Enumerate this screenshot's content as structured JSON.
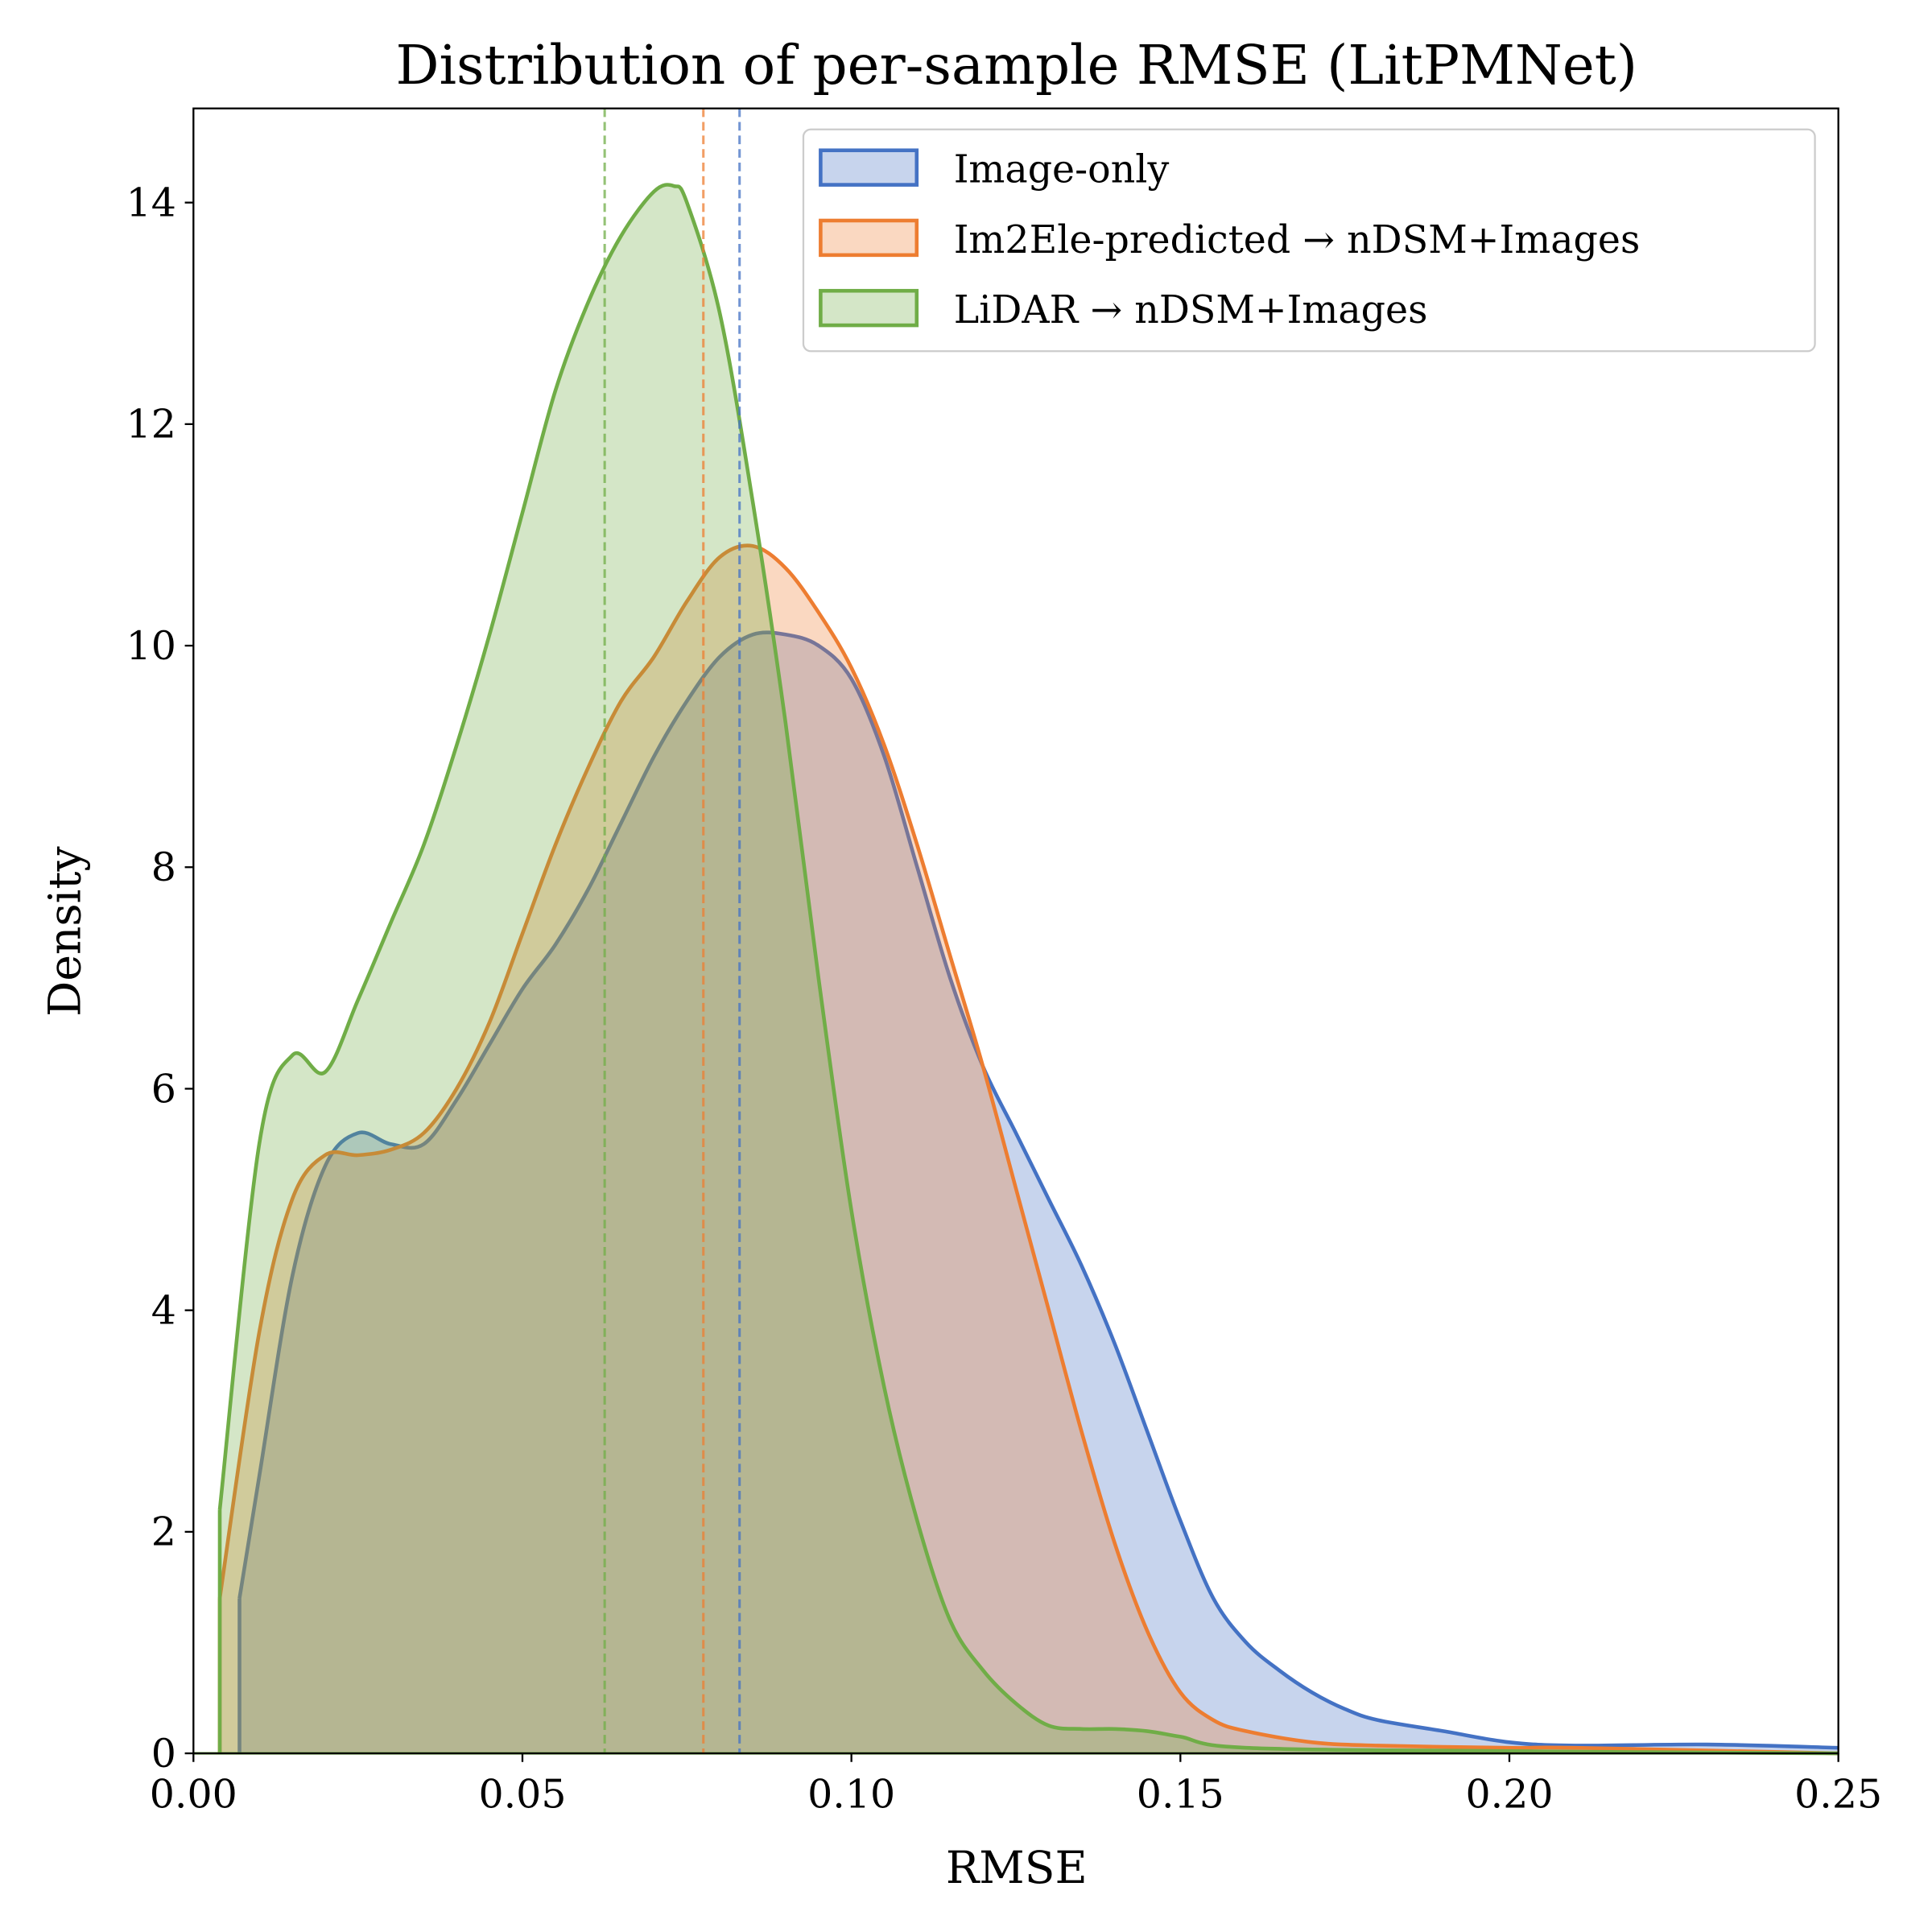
{
  "chart_data": {
    "type": "area",
    "title": "Distribution of per-sample RMSE (LitPMNet)",
    "xlabel": "RMSE",
    "ylabel": "Density",
    "xlim": [
      0,
      0.25
    ],
    "ylim": [
      0,
      14.85
    ],
    "xticks": [
      0,
      0.05,
      0.1,
      0.15,
      0.2,
      0.25
    ],
    "xtick_labels": [
      "0.00",
      "0.05",
      "0.10",
      "0.15",
      "0.20",
      "0.25"
    ],
    "yticks": [
      0,
      2,
      4,
      6,
      8,
      10,
      12,
      14
    ],
    "ytick_labels": [
      "0",
      "2",
      "4",
      "6",
      "8",
      "10",
      "12",
      "14"
    ],
    "grid": false,
    "legend_position": "top-right",
    "series": [
      {
        "name": "Image-only",
        "color": "#4472c4",
        "mean": 0.083,
        "x": [
          0.007,
          0.01,
          0.015,
          0.02,
          0.025,
          0.03,
          0.035,
          0.04,
          0.045,
          0.05,
          0.055,
          0.06,
          0.065,
          0.07,
          0.075,
          0.08,
          0.085,
          0.09,
          0.095,
          0.1,
          0.105,
          0.11,
          0.115,
          0.12,
          0.125,
          0.13,
          0.135,
          0.14,
          0.145,
          0.15,
          0.155,
          0.16,
          0.165,
          0.17,
          0.175,
          0.18,
          0.19,
          0.2,
          0.21,
          0.23,
          0.25
        ],
        "y": [
          1.4,
          2.5,
          4.3,
          5.3,
          5.6,
          5.5,
          5.5,
          5.9,
          6.4,
          6.9,
          7.3,
          7.8,
          8.4,
          9.0,
          9.5,
          9.9,
          10.1,
          10.1,
          10.0,
          9.7,
          9.0,
          8.0,
          7.0,
          6.2,
          5.6,
          5.0,
          4.4,
          3.7,
          2.9,
          2.1,
          1.4,
          1.0,
          0.75,
          0.55,
          0.4,
          0.3,
          0.2,
          0.1,
          0.07,
          0.08,
          0.05
        ]
      },
      {
        "name": "Im2Ele-predicted → nDSM+Images",
        "color": "#ed7d31",
        "mean": 0.0775,
        "x": [
          0.004,
          0.01,
          0.015,
          0.02,
          0.025,
          0.03,
          0.035,
          0.04,
          0.045,
          0.05,
          0.055,
          0.06,
          0.065,
          0.07,
          0.075,
          0.08,
          0.085,
          0.09,
          0.095,
          0.1,
          0.105,
          0.11,
          0.115,
          0.12,
          0.125,
          0.13,
          0.135,
          0.14,
          0.145,
          0.15,
          0.155,
          0.16,
          0.17,
          0.18,
          0.2,
          0.21,
          0.25
        ],
        "y": [
          1.4,
          3.8,
          5.0,
          5.4,
          5.4,
          5.45,
          5.6,
          6.0,
          6.6,
          7.4,
          8.2,
          8.9,
          9.5,
          9.9,
          10.4,
          10.8,
          10.9,
          10.7,
          10.3,
          9.8,
          9.1,
          8.2,
          7.2,
          6.2,
          5.1,
          4.0,
          2.9,
          1.9,
          1.1,
          0.55,
          0.3,
          0.2,
          0.1,
          0.07,
          0.05,
          0.05,
          0.0
        ]
      },
      {
        "name": "LiDAR → nDSM+Images",
        "color": "#70ad47",
        "mean": 0.0625,
        "x": [
          0.004,
          0.01,
          0.015,
          0.02,
          0.025,
          0.03,
          0.035,
          0.04,
          0.045,
          0.05,
          0.055,
          0.06,
          0.065,
          0.07,
          0.073,
          0.075,
          0.08,
          0.085,
          0.09,
          0.095,
          0.1,
          0.105,
          0.11,
          0.115,
          0.12,
          0.125,
          0.13,
          0.135,
          0.14,
          0.145,
          0.15,
          0.16,
          0.2,
          0.25
        ],
        "y": [
          2.2,
          5.5,
          6.3,
          6.15,
          6.8,
          7.5,
          8.2,
          9.1,
          10.1,
          11.2,
          12.3,
          13.1,
          13.7,
          14.1,
          14.15,
          14.0,
          13.0,
          11.3,
          9.3,
          7.0,
          4.9,
          3.3,
          2.1,
          1.2,
          0.75,
          0.45,
          0.25,
          0.22,
          0.22,
          0.2,
          0.15,
          0.05,
          0.02,
          0.0
        ]
      }
    ]
  }
}
